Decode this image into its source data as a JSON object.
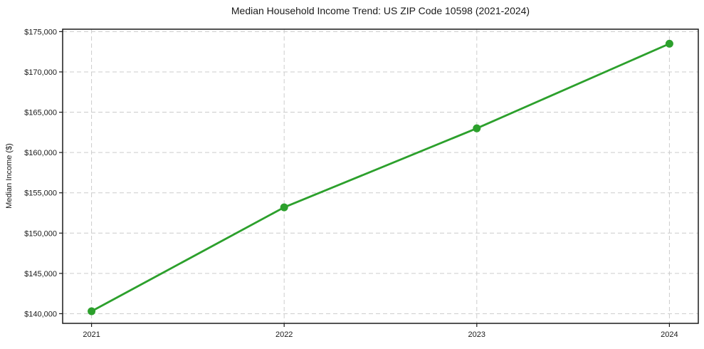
{
  "chart_data": {
    "type": "line",
    "title": "Median Household Income Trend: US ZIP Code 10598 (2021-2024)",
    "xlabel": "",
    "ylabel": "Median Income ($)",
    "x": [
      2021,
      2022,
      2023,
      2024
    ],
    "x_tick_labels": [
      "2021",
      "2022",
      "2023",
      "2024"
    ],
    "values": [
      140300,
      153200,
      163000,
      173500
    ],
    "y_ticks": [
      140000,
      145000,
      150000,
      155000,
      160000,
      165000,
      170000,
      175000
    ],
    "y_tick_labels": [
      "$140,000",
      "$145,000",
      "$150,000",
      "$155,000",
      "$160,000",
      "$165,000",
      "$170,000",
      "$175,000"
    ],
    "xlim": [
      2020.85,
      2024.15
    ],
    "ylim": [
      138800,
      175300
    ],
    "grid": true,
    "grid_style": "dashed",
    "legend": "none",
    "marker": "circle",
    "colors": {
      "line": "#2ca02c",
      "marker": "#2ca02c",
      "grid": "#cccccc",
      "axis": "#1a1a1a",
      "text": "#1a1a1a",
      "background": "#ffffff"
    }
  }
}
